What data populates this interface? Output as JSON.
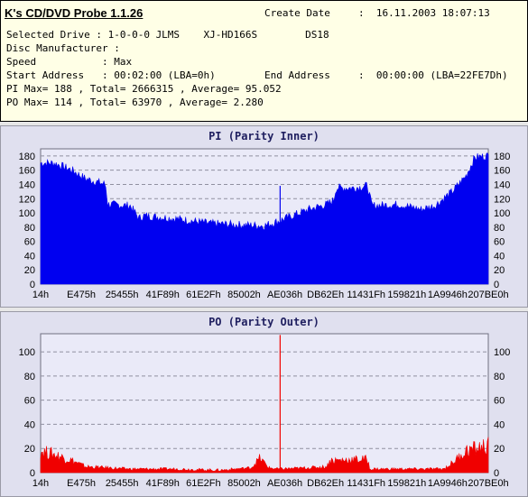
{
  "info": {
    "title": "K's CD/DVD Probe 1.1.26",
    "create_date_label": "Create Date",
    "create_date_value": ":  16.11.2003 18:07:13",
    "line_drive": "Selected Drive : 1-0-0-0 JLMS    XJ-HD166S        DS18",
    "line_manufacturer": "Disc Manufacturer :",
    "line_speed": "Speed           : Max",
    "line_start": "Start Address   : 00:02:00 (LBA=0h)",
    "end_address_label": "End Address",
    "end_address_value": ":  00:00:00 (LBA=22FE7Dh)",
    "line_pi": "PI Max= 188 , Total= 2666315 , Average= 95.052",
    "line_po": "PO Max= 114 , Total= 63970 , Average= 2.280"
  },
  "chart_data": [
    {
      "type": "area",
      "title": "PI (Parity Inner)",
      "color": "#0000f0",
      "ylim": [
        0,
        190
      ],
      "yticks": [
        0,
        20,
        40,
        60,
        80,
        100,
        120,
        140,
        160,
        180
      ],
      "xtick_labels": [
        "14h",
        "E475h",
        "25455h",
        "41F89h",
        "61E2Fh",
        "85002h",
        "AE036h",
        "DB62Eh",
        "11431Fh",
        "159821h",
        "1A9946h",
        "207BE0h"
      ],
      "grid": true,
      "x": [
        0,
        0.03,
        0.07,
        0.1,
        0.145,
        0.15,
        0.2,
        0.22,
        0.23,
        0.3,
        0.38,
        0.45,
        0.5,
        0.53,
        0.6,
        0.64,
        0.655,
        0.66,
        0.7,
        0.73,
        0.74,
        0.8,
        0.85,
        0.88,
        0.92,
        0.95,
        0.97,
        1.0
      ],
      "values": [
        170,
        170,
        160,
        148,
        140,
        112,
        110,
        92,
        96,
        92,
        85,
        83,
        82,
        88,
        105,
        112,
        118,
        135,
        135,
        138,
        110,
        112,
        105,
        110,
        130,
        152,
        178,
        180
      ],
      "spikes": [
        {
          "x": 0.535,
          "value": 138
        }
      ]
    },
    {
      "type": "area",
      "title": "PO (Parity Outer)",
      "color": "#f00000",
      "ylim": [
        0,
        115
      ],
      "yticks": [
        0,
        20,
        40,
        60,
        80,
        100
      ],
      "xtick_labels": [
        "14h",
        "E475h",
        "25455h",
        "41F89h",
        "61E2Fh",
        "85002h",
        "AE036h",
        "DB62Eh",
        "11431Fh",
        "159821h",
        "1A9946h",
        "207BE0h"
      ],
      "grid": true,
      "x": [
        0,
        0.03,
        0.07,
        0.1,
        0.15,
        0.2,
        0.3,
        0.4,
        0.47,
        0.49,
        0.51,
        0.53,
        0.6,
        0.64,
        0.645,
        0.73,
        0.735,
        0.8,
        0.9,
        0.92,
        0.95,
        1.0
      ],
      "values": [
        18,
        15,
        10,
        5,
        4,
        3,
        3,
        2,
        4,
        12,
        4,
        3,
        4,
        5,
        10,
        11,
        3,
        3,
        3,
        8,
        18,
        22
      ],
      "spikes": [
        {
          "x": 0.535,
          "value": 114
        }
      ]
    }
  ]
}
